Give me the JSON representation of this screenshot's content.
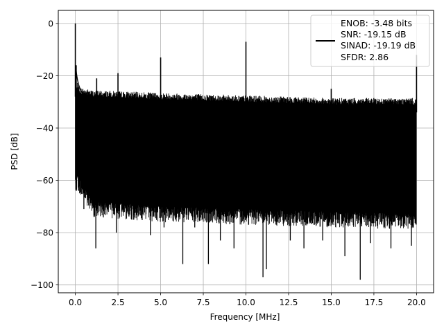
{
  "chart_data": {
    "type": "line",
    "title": "",
    "xlabel": "Frequency [MHz]",
    "ylabel": "PSD [dB]",
    "xlim": [
      -1.0,
      21.0
    ],
    "ylim": [
      -103.0,
      5.0
    ],
    "xticks": [
      0.0,
      2.5,
      5.0,
      7.5,
      10.0,
      12.5,
      15.0,
      17.5,
      20.0
    ],
    "xtick_labels": [
      "0.0",
      "2.5",
      "5.0",
      "7.5",
      "10.0",
      "12.5",
      "15.0",
      "17.5",
      "20.0"
    ],
    "yticks": [
      0,
      -20,
      -40,
      -60,
      -80,
      -100
    ],
    "ytick_labels": [
      "0",
      "−20",
      "−40",
      "−60",
      "−80",
      "−100"
    ],
    "grid": true,
    "legend_position": "top-right",
    "legend_lines": [
      "ENOB: -3.48 bits",
      "SNR: -19.15 dB",
      "SINAD: -19.19 dB",
      "SFDR: 2.86"
    ],
    "line_color": "#000000",
    "series": [
      {
        "style": "noise-band",
        "x_range": [
          0.0,
          20.0
        ],
        "upper": [
          [
            0.1,
            -24
          ],
          [
            0.3,
            -26
          ],
          [
            1,
            -27
          ],
          [
            5,
            -28
          ],
          [
            10,
            -29
          ],
          [
            15,
            -30
          ],
          [
            20,
            -30
          ]
        ],
        "dense_lower": [
          [
            0.1,
            -58
          ],
          [
            1,
            -68
          ],
          [
            5,
            -70
          ],
          [
            10,
            -71
          ],
          [
            15,
            -72
          ],
          [
            20,
            -73
          ]
        ],
        "floor_dips": [
          [
            0.2,
            -64
          ],
          [
            0.5,
            -71
          ],
          [
            1.2,
            -86
          ],
          [
            2.4,
            -80
          ],
          [
            3.3,
            -75
          ],
          [
            4.4,
            -81
          ],
          [
            5.2,
            -78
          ],
          [
            6.3,
            -92
          ],
          [
            7.0,
            -78
          ],
          [
            7.8,
            -92
          ],
          [
            8.5,
            -83
          ],
          [
            9.3,
            -86
          ],
          [
            11.0,
            -97
          ],
          [
            11.2,
            -94
          ],
          [
            12.6,
            -83
          ],
          [
            13.4,
            -86
          ],
          [
            14.5,
            -83
          ],
          [
            15.0,
            -77
          ],
          [
            15.8,
            -89
          ],
          [
            16.7,
            -98
          ],
          [
            17.3,
            -84
          ],
          [
            18.5,
            -86
          ],
          [
            19.7,
            -85
          ]
        ],
        "spikes": [
          [
            0.0,
            0
          ],
          [
            0.05,
            -16
          ],
          [
            1.25,
            -21
          ],
          [
            2.5,
            -19
          ],
          [
            5.0,
            -13
          ],
          [
            10.0,
            -7
          ],
          [
            15.0,
            -25
          ],
          [
            20.0,
            -12
          ]
        ]
      }
    ]
  }
}
